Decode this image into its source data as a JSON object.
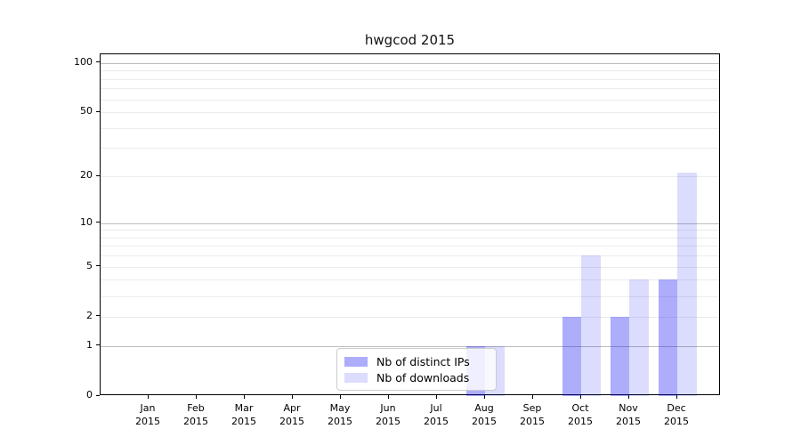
{
  "chart_data": {
    "type": "bar",
    "title": "hwgcod 2015",
    "x_axis": {
      "categories": [
        "Jan",
        "Feb",
        "Mar",
        "Apr",
        "May",
        "Jun",
        "Jul",
        "Aug",
        "Sep",
        "Oct",
        "Nov",
        "Dec"
      ],
      "year": "2015"
    },
    "y_axis": {
      "ticks": [
        100,
        50,
        20,
        10,
        5,
        2,
        1,
        0
      ],
      "scale": "log1p",
      "max": 112.7
    },
    "grid": {
      "major": [
        1,
        10,
        100
      ],
      "minor": [
        2,
        3,
        4,
        5,
        6,
        7,
        8,
        9,
        20,
        30,
        40,
        50,
        60,
        70,
        80,
        90
      ]
    },
    "series": [
      {
        "name": "Nb of distinct IPs",
        "color": "rgba(15,15,245,0.34)",
        "color_hex": "#aaaaf6",
        "values": [
          0,
          0,
          0,
          0,
          0,
          0,
          0,
          1,
          0,
          2,
          2,
          4
        ]
      },
      {
        "name": "Nb of downloads",
        "color": "rgba(15,15,245,0.145)",
        "color_hex": "#dcdcfb",
        "values": [
          0,
          0,
          0,
          0,
          0,
          0,
          0,
          1,
          0,
          6,
          4,
          21
        ]
      }
    ],
    "legend_position": "bottom-center"
  }
}
